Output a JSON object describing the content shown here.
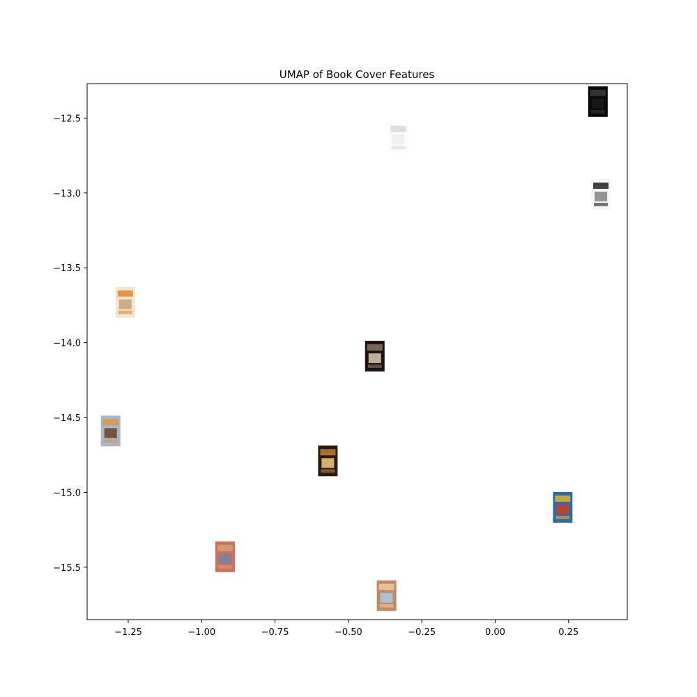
{
  "chart_data": {
    "type": "scatter",
    "title": "UMAP of Book Cover Features",
    "xlabel": "",
    "ylabel": "",
    "xlim": [
      -1.39,
      0.45
    ],
    "ylim": [
      -15.85,
      -12.27
    ],
    "grid": false,
    "legend": "none",
    "xticks": [
      -1.25,
      -1.0,
      -0.75,
      -0.5,
      -0.25,
      0.0,
      0.25
    ],
    "xtick_labels": [
      "−1.25",
      "−1.00",
      "−0.75",
      "−0.50",
      "−0.25",
      "0.00",
      "0.25"
    ],
    "yticks": [
      -12.5,
      -13.0,
      -13.5,
      -14.0,
      -14.5,
      -15.0,
      -15.5
    ],
    "ytick_labels": [
      "−12.5",
      "−13.0",
      "−13.5",
      "−14.0",
      "−14.5",
      "−15.0",
      "−15.5"
    ],
    "marker": "book-cover-thumbnail",
    "points": [
      {
        "x": 0.35,
        "y": -12.39,
        "colors": [
          "#0a0a0a",
          "#3a3a3a",
          "#1a1a1a"
        ]
      },
      {
        "x": -0.33,
        "y": -12.63,
        "colors": [
          "#fbfbfb",
          "#d8d8d8",
          "#eeeeee"
        ]
      },
      {
        "x": 0.36,
        "y": -13.01,
        "colors": [
          "#f6f6f6",
          "#1f1f1f",
          "#8a8a8a"
        ]
      },
      {
        "x": -1.26,
        "y": -13.73,
        "colors": [
          "#f3e6cf",
          "#d88a3a",
          "#c9a47a"
        ]
      },
      {
        "x": -0.41,
        "y": -14.09,
        "colors": [
          "#1c1410",
          "#8c7460",
          "#cfc0a8"
        ]
      },
      {
        "x": -1.31,
        "y": -14.59,
        "colors": [
          "#a9b6c9",
          "#d79a45",
          "#6b4a2a"
        ]
      },
      {
        "x": -0.57,
        "y": -14.79,
        "colors": [
          "#2a1a10",
          "#c0803a",
          "#e9c07a"
        ]
      },
      {
        "x": 0.23,
        "y": -15.1,
        "colors": [
          "#2c6aa8",
          "#e6b12a",
          "#c8402a"
        ]
      },
      {
        "x": -0.92,
        "y": -15.43,
        "colors": [
          "#d96a55",
          "#c9a57a",
          "#6f8aa0"
        ]
      },
      {
        "x": -0.37,
        "y": -15.69,
        "colors": [
          "#c08a60",
          "#e8c8a8",
          "#a8c8e0"
        ]
      }
    ]
  }
}
